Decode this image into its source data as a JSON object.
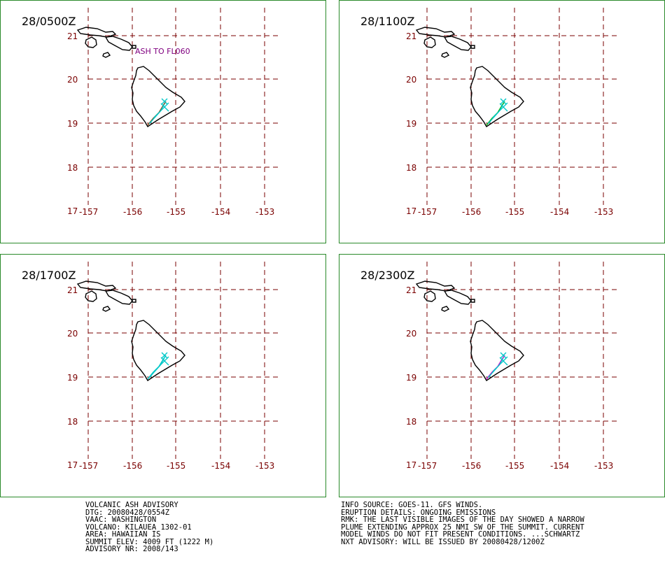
{
  "map": {
    "lat_ticks": [
      "21",
      "20",
      "19",
      "18",
      "17"
    ],
    "lon_ticks": [
      "-157",
      "-156",
      "-155",
      "-154",
      "-153"
    ],
    "grid_color": "#7a0000",
    "coast_color": "#000000",
    "frame_color": "#2a8a2a"
  },
  "panels": [
    {
      "time": "28/0500Z",
      "annotation": "ASH TO FL060",
      "plume_colors": [
        "#8b4513",
        "#00c8c8"
      ]
    },
    {
      "time": "28/1100Z",
      "annotation": "",
      "plume_colors": [
        "#00b000",
        "#00c8c8"
      ]
    },
    {
      "time": "28/1700Z",
      "annotation": "",
      "plume_colors": [
        "#00c8c8",
        "#00c8c8"
      ]
    },
    {
      "time": "28/2300Z",
      "annotation": "",
      "plume_colors": [
        "#d000d0",
        "#00c8c8"
      ]
    }
  ],
  "advisory_left": [
    "VOLCANIC ASH ADVISORY",
    "DTG: 20080428/0554Z",
    "VAAC: WASHINGTON",
    "VOLCANO: KILAUEA 1302-01",
    "AREA: HAWAIIAN IS",
    "SUMMIT ELEV: 4009 FT (1222 M)",
    "ADVISORY NR: 2008/143"
  ],
  "advisory_right": [
    "INFO SOURCE: GOES-11. GFS WINDS.",
    "ERUPTION DETAILS: ONGOING EMISSIONS",
    "RMK: THE LAST VISIBLE IMAGES OF THE DAY SHOWED A NARROW",
    "PLUME EXTENDING APPROX 25 NMI SW OF THE SUMMIT. CURRENT",
    "MODEL WINDS DO NOT FIT PRESENT CONDITIONS. ...SCHWARTZ",
    "NXT ADVISORY: WILL BE ISSUED BY 20080428/1200Z"
  ]
}
